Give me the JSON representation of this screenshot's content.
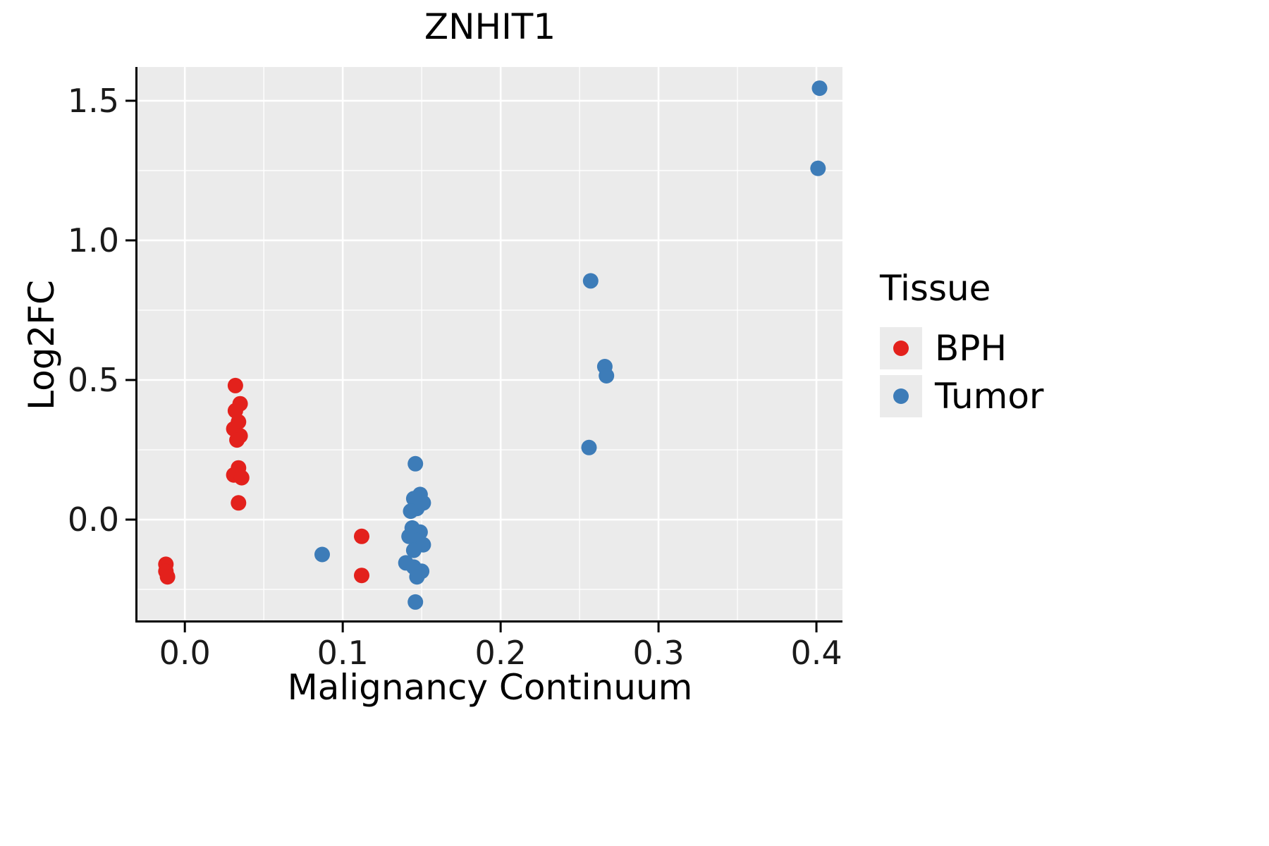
{
  "figure": {
    "title": "ZNHIT1",
    "x_label": "Malignancy Continuum",
    "y_label": "Log2FC"
  },
  "legend": {
    "title": "Tissue",
    "entries": [
      {
        "label": "BPH",
        "color": "#e3211c"
      },
      {
        "label": "Tumor",
        "color": "#3d7cb8"
      }
    ]
  },
  "style": {
    "panel_bg": "#ebebeb",
    "grid_color": "#ffffff",
    "axis_color": "#000000",
    "tick_label_color": "#1a1a1a",
    "point_radius": 11,
    "legend_key_bg": "#ebebeb"
  },
  "chart_data": {
    "type": "scatter",
    "title": "ZNHIT1",
    "xlabel": "Malignancy Continuum",
    "ylabel": "Log2FC",
    "xlim": [
      -0.03,
      0.4165
    ],
    "ylim": [
      -0.361,
      1.621
    ],
    "x_ticks": [
      0.0,
      0.1,
      0.2,
      0.3,
      0.4
    ],
    "x_tick_labels": [
      "0.0",
      "0.1",
      "0.2",
      "0.3",
      "0.4"
    ],
    "y_ticks": [
      0.0,
      0.5,
      1.0,
      1.5
    ],
    "y_tick_labels": [
      "0.0",
      "0.5",
      "1.0",
      "1.5"
    ],
    "x_minor_ticks": [
      0.05,
      0.15,
      0.25,
      0.35
    ],
    "y_minor_ticks": [
      -0.25,
      0.25,
      0.75,
      1.25
    ],
    "grid": true,
    "legend_position": "right",
    "legend_title": "Tissue",
    "series": [
      {
        "name": "BPH",
        "color": "#e3211c",
        "points": [
          [
            -0.012,
            -0.16
          ],
          [
            -0.012,
            -0.185
          ],
          [
            -0.011,
            -0.205
          ],
          [
            0.032,
            0.48
          ],
          [
            0.035,
            0.415
          ],
          [
            0.032,
            0.39
          ],
          [
            0.034,
            0.35
          ],
          [
            0.031,
            0.325
          ],
          [
            0.035,
            0.3
          ],
          [
            0.033,
            0.285
          ],
          [
            0.034,
            0.185
          ],
          [
            0.031,
            0.16
          ],
          [
            0.036,
            0.15
          ],
          [
            0.034,
            0.06
          ],
          [
            0.112,
            -0.06
          ],
          [
            0.112,
            -0.2
          ]
        ]
      },
      {
        "name": "Tumor",
        "color": "#3d7cb8",
        "points": [
          [
            0.087,
            -0.125
          ],
          [
            0.146,
            0.2
          ],
          [
            0.149,
            0.09
          ],
          [
            0.145,
            0.075
          ],
          [
            0.151,
            0.06
          ],
          [
            0.147,
            0.04
          ],
          [
            0.143,
            0.03
          ],
          [
            0.144,
            -0.03
          ],
          [
            0.149,
            -0.045
          ],
          [
            0.142,
            -0.06
          ],
          [
            0.147,
            -0.075
          ],
          [
            0.151,
            -0.09
          ],
          [
            0.145,
            -0.11
          ],
          [
            0.14,
            -0.155
          ],
          [
            0.145,
            -0.17
          ],
          [
            0.15,
            -0.185
          ],
          [
            0.147,
            -0.205
          ],
          [
            0.146,
            -0.295
          ],
          [
            0.257,
            0.855
          ],
          [
            0.256,
            0.258
          ],
          [
            0.266,
            0.548
          ],
          [
            0.267,
            0.515
          ],
          [
            0.402,
            1.545
          ],
          [
            0.401,
            1.258
          ]
        ]
      }
    ]
  }
}
